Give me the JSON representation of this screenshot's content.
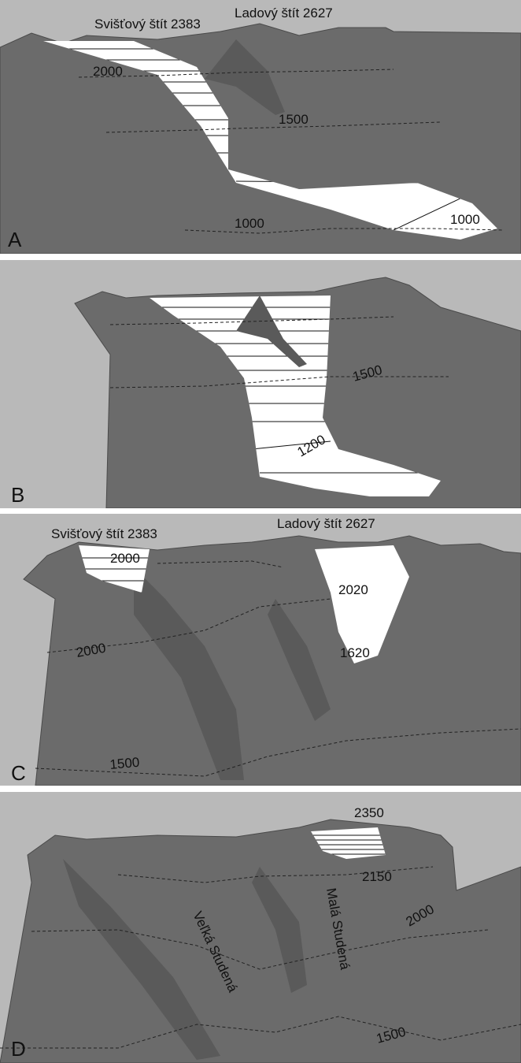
{
  "panels": [
    {
      "letter": "A",
      "labels": [
        "Svišťový štít  2383",
        "Ladový štít  2627",
        "2000",
        "1500",
        "1000",
        "1000"
      ]
    },
    {
      "letter": "B",
      "labels": [
        "1500",
        "1200"
      ]
    },
    {
      "letter": "C",
      "labels": [
        "Svišťový štít  2383",
        "Ladový štít  2627",
        "2000",
        "2020",
        "1620",
        "2000",
        "1500"
      ]
    },
    {
      "letter": "D",
      "labels": [
        "2350",
        "2150",
        "2000",
        "1500",
        "Veľká Studená",
        "Malá Studená"
      ]
    }
  ]
}
